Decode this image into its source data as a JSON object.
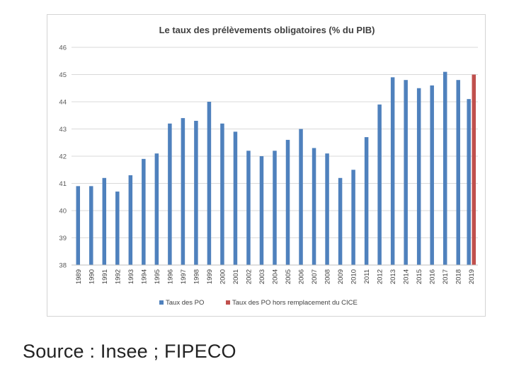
{
  "chart_data": {
    "type": "bar",
    "title": "Le taux des prélèvements obligatoires (% du PIB)",
    "xlabel": "",
    "ylabel": "",
    "ylim": [
      38,
      46
    ],
    "yticks": [
      38,
      39,
      40,
      41,
      42,
      43,
      44,
      45,
      46
    ],
    "grid": true,
    "legend_position": "bottom",
    "categories": [
      "1989",
      "1990",
      "1991",
      "1992",
      "1993",
      "1994",
      "1995",
      "1996",
      "1997",
      "1998",
      "1999",
      "2000",
      "2001",
      "2002",
      "2003",
      "2004",
      "2005",
      "2006",
      "2007",
      "2008",
      "2009",
      "2010",
      "2011",
      "2012",
      "2013",
      "2014",
      "2015",
      "2016",
      "2017",
      "2018",
      "2019"
    ],
    "series": [
      {
        "name": "Taux des PO",
        "color": "#4f81bd",
        "values": [
          40.9,
          40.9,
          41.2,
          40.7,
          41.3,
          41.9,
          42.1,
          43.2,
          43.4,
          43.3,
          44.0,
          43.2,
          42.9,
          42.2,
          42.0,
          42.2,
          42.6,
          43.0,
          42.3,
          42.1,
          41.2,
          41.5,
          42.7,
          43.9,
          44.9,
          44.8,
          44.5,
          44.6,
          45.1,
          44.8,
          44.1
        ]
      },
      {
        "name": "Taux des PO hors remplacement du CICE",
        "color": "#c0504d",
        "values": [
          null,
          null,
          null,
          null,
          null,
          null,
          null,
          null,
          null,
          null,
          null,
          null,
          null,
          null,
          null,
          null,
          null,
          null,
          null,
          null,
          null,
          null,
          null,
          null,
          null,
          null,
          null,
          null,
          null,
          null,
          45.0
        ]
      }
    ]
  },
  "source": "Source : Insee ; FIPECO"
}
